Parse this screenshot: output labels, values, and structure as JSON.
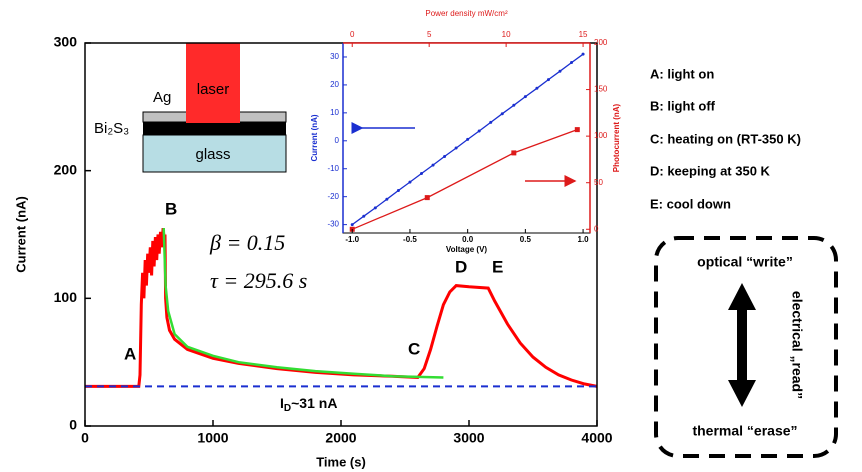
{
  "chart_data": [
    {
      "type": "line",
      "x_label": "Time (s)",
      "y_label": "Current (nA)",
      "xlim": [
        0,
        4000
      ],
      "ylim": [
        0,
        300
      ],
      "xticks": [
        0,
        1000,
        2000,
        3000,
        4000
      ],
      "yticks": [
        0,
        100,
        200,
        300
      ],
      "series": [
        {
          "color": "#ff0000",
          "x": [
            0,
            420,
            430,
            440,
            450,
            460,
            470,
            480,
            490,
            500,
            510,
            520,
            530,
            540,
            550,
            560,
            570,
            580,
            590,
            600,
            610,
            620,
            625,
            630,
            640,
            660,
            700,
            800,
            1000,
            1200,
            1500,
            1800,
            2100,
            2400,
            2600,
            2650,
            2700,
            2750,
            2800,
            2850,
            2900,
            3000,
            3150,
            3200,
            3300,
            3400,
            3500,
            3600,
            3700,
            3800,
            3900,
            4000
          ],
          "values": [
            31,
            31,
            40,
            95,
            120,
            100,
            130,
            110,
            135,
            120,
            140,
            118,
            145,
            125,
            148,
            130,
            150,
            135,
            152,
            140,
            155,
            145,
            150,
            100,
            85,
            75,
            68,
            60,
            53,
            49,
            45,
            42,
            40,
            39,
            38,
            45,
            60,
            78,
            95,
            105,
            110,
            109,
            108,
            98,
            80,
            65,
            54,
            46,
            40,
            36,
            33,
            31
          ]
        },
        {
          "color": "#33dd33",
          "x": [
            615,
            630,
            650,
            700,
            800,
            1000,
            1200,
            1500,
            1800,
            2100,
            2400,
            2800
          ],
          "values": [
            155,
            110,
            90,
            72,
            62,
            55,
            50,
            46,
            43,
            41,
            39,
            38
          ]
        },
        {
          "color": "#1a2fd0",
          "dashed": true,
          "x": [
            0,
            4000
          ],
          "values": [
            31,
            31
          ]
        }
      ],
      "annotations": [
        "A",
        "B",
        "C",
        "D",
        "E",
        "β = 0.15",
        "τ = 295.6 s"
      ],
      "baseline_label": {
        "main": "I",
        "sub": "D",
        "rest": "~31 nA"
      }
    },
    {
      "type": "line",
      "x_label": "Voltage (V)",
      "y_label": "Current (nA)",
      "y2_label": "Photocurrent (nA)",
      "x2_label": "Power density mW/cm²",
      "xlim": [
        -1.08,
        1.06
      ],
      "ylim": [
        -33,
        35
      ],
      "y2lim": [
        -4,
        200
      ],
      "x2lim": [
        -0.6,
        15.45
      ],
      "xticks": [
        {
          "value": -1,
          "label": "-1.0"
        },
        -0.5,
        {
          "value": 0,
          "label": "0.0"
        },
        0.5,
        {
          "value": 1,
          "label": "1.0"
        }
      ],
      "yticks": [
        -30,
        -20,
        -10,
        0,
        10,
        20,
        30
      ],
      "y2ticks": [
        0,
        50,
        100,
        150,
        200
      ],
      "x2ticks": [
        0,
        5,
        10,
        15
      ],
      "series": [
        {
          "color": "#1a2fd0",
          "x": [
            -1,
            -0.9,
            -0.8,
            -0.7,
            -0.6,
            -0.5,
            -0.4,
            -0.3,
            -0.2,
            -0.1,
            0,
            0.1,
            0.2,
            0.3,
            0.4,
            0.5,
            0.6,
            0.7,
            0.8,
            0.9,
            1
          ],
          "values": [
            -30,
            -27,
            -24,
            -20.9,
            -17.8,
            -14.8,
            -11.7,
            -8.7,
            -5.6,
            -2.6,
            0.5,
            3.5,
            6.6,
            9.7,
            12.7,
            15.8,
            18.8,
            21.9,
            24.9,
            28,
            31
          ]
        },
        {
          "color": "#dd1a1a",
          "axis": "y2",
          "x": [
            -1,
            -0.35,
            0.4,
            0.95
          ],
          "values": [
            0,
            34,
            82,
            107
          ]
        }
      ]
    }
  ],
  "schematic": {
    "ag": "Ag",
    "laser": "laser",
    "bi2s3": "Bi₂S₃",
    "glass": "glass"
  },
  "notes": [
    "A: light on",
    "B: light off",
    "C: heating on (RT-350 K)",
    "D: keeping at 350 K",
    "E: cool down"
  ],
  "diagram": {
    "top": "optical “write”",
    "side": "electrical „read”",
    "bottom": "thermal “erase”"
  }
}
